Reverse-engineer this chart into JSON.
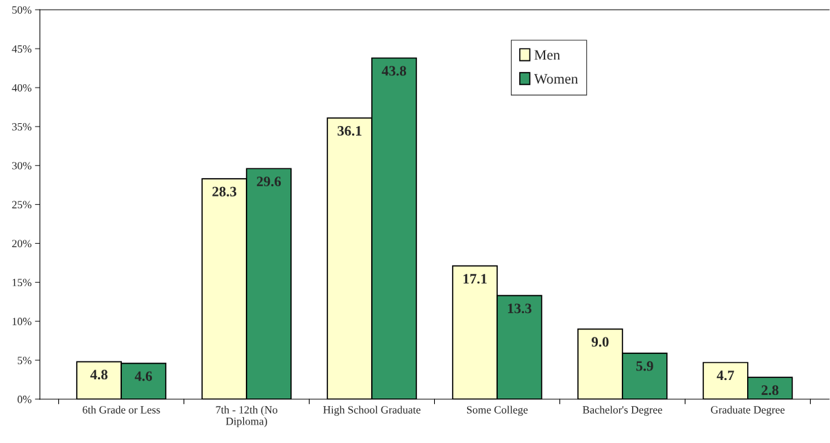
{
  "chart_data": {
    "type": "bar",
    "categories": [
      "6th Grade or Less",
      "7th - 12th (No\nDiploma)",
      "High School Graduate",
      "Some College",
      "Bachelor's Degree",
      "Graduate Degree"
    ],
    "series": [
      {
        "name": "Men",
        "color": "#ffffcc",
        "values": [
          4.8,
          28.3,
          36.1,
          17.1,
          9.0,
          4.7
        ],
        "value_labels": [
          "4.8",
          "28.3",
          "36.1",
          "17.1",
          "9.0",
          "4.7"
        ]
      },
      {
        "name": "Women",
        "color": "#339966",
        "values": [
          4.6,
          29.6,
          43.8,
          13.3,
          5.9,
          2.8
        ],
        "value_labels": [
          "4.6",
          "29.6",
          "43.8",
          "13.3",
          "5.9",
          "2.8"
        ]
      }
    ],
    "ylim": [
      0,
      50
    ],
    "yticks": [
      {
        "value": 0,
        "label": "0%"
      },
      {
        "value": 5,
        "label": "5%"
      },
      {
        "value": 10,
        "label": "10%"
      },
      {
        "value": 15,
        "label": "15%"
      },
      {
        "value": 20,
        "label": "20%"
      },
      {
        "value": 25,
        "label": "25%"
      },
      {
        "value": 30,
        "label": "30%"
      },
      {
        "value": 35,
        "label": "35%"
      },
      {
        "value": 40,
        "label": "40%"
      },
      {
        "value": 45,
        "label": "45%"
      },
      {
        "value": 50,
        "label": "50%"
      }
    ],
    "grid": false,
    "legend": "top"
  }
}
